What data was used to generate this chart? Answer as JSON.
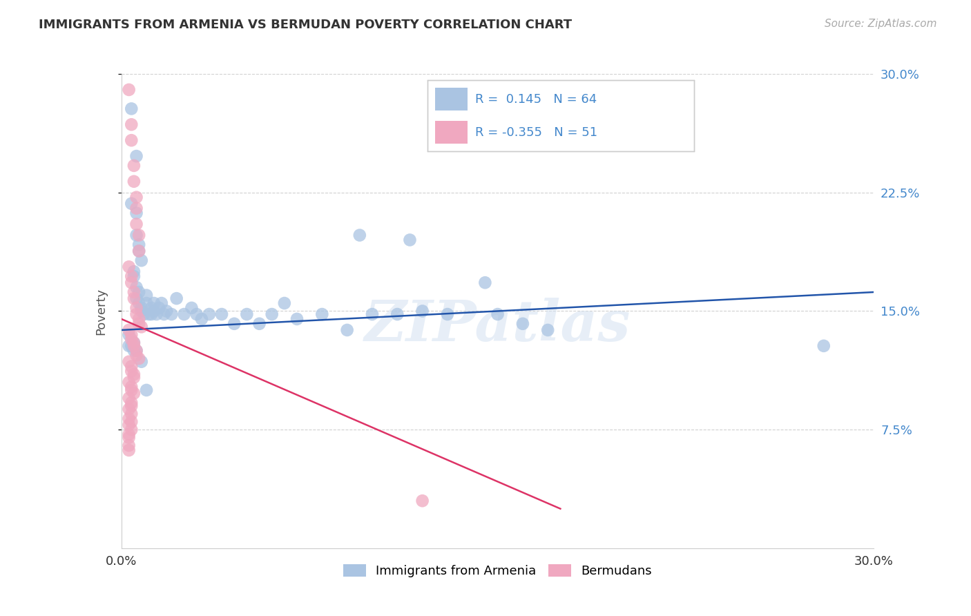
{
  "title": "IMMIGRANTS FROM ARMENIA VS BERMUDAN POVERTY CORRELATION CHART",
  "source": "Source: ZipAtlas.com",
  "ylabel": "Poverty",
  "xlim": [
    0.0,
    0.3
  ],
  "ylim": [
    0.0,
    0.3
  ],
  "xtick_labels": [
    "0.0%",
    "30.0%"
  ],
  "ytick_labels": [
    "7.5%",
    "15.0%",
    "22.5%",
    "30.0%"
  ],
  "ytick_vals": [
    0.075,
    0.15,
    0.225,
    0.3
  ],
  "legend_labels": [
    "Immigrants from Armenia",
    "Bermudans"
  ],
  "blue_R": "0.145",
  "blue_N": "64",
  "pink_R": "-0.355",
  "pink_N": "51",
  "blue_color": "#aac4e2",
  "pink_color": "#f0a8c0",
  "blue_line_color": "#2255aa",
  "pink_line_color": "#dd3366",
  "watermark": "ZIPatlas",
  "blue_scatter_x": [
    0.004,
    0.006,
    0.004,
    0.006,
    0.006,
    0.007,
    0.007,
    0.008,
    0.005,
    0.005,
    0.006,
    0.007,
    0.006,
    0.007,
    0.008,
    0.008,
    0.009,
    0.01,
    0.01,
    0.011,
    0.012,
    0.012,
    0.013,
    0.013,
    0.014,
    0.015,
    0.016,
    0.017,
    0.018,
    0.02,
    0.022,
    0.025,
    0.028,
    0.03,
    0.032,
    0.035,
    0.04,
    0.045,
    0.05,
    0.055,
    0.06,
    0.065,
    0.07,
    0.08,
    0.09,
    0.1,
    0.11,
    0.12,
    0.13,
    0.15,
    0.003,
    0.003,
    0.004,
    0.005,
    0.005,
    0.006,
    0.008,
    0.01,
    0.17,
    0.28,
    0.095,
    0.115,
    0.16,
    0.145
  ],
  "blue_scatter_y": [
    0.278,
    0.248,
    0.218,
    0.212,
    0.198,
    0.192,
    0.188,
    0.182,
    0.175,
    0.172,
    0.165,
    0.162,
    0.158,
    0.155,
    0.152,
    0.15,
    0.148,
    0.155,
    0.16,
    0.148,
    0.148,
    0.152,
    0.15,
    0.155,
    0.148,
    0.152,
    0.155,
    0.148,
    0.15,
    0.148,
    0.158,
    0.148,
    0.152,
    0.148,
    0.145,
    0.148,
    0.148,
    0.142,
    0.148,
    0.142,
    0.148,
    0.155,
    0.145,
    0.148,
    0.138,
    0.148,
    0.148,
    0.15,
    0.148,
    0.148,
    0.135,
    0.128,
    0.128,
    0.13,
    0.125,
    0.125,
    0.118,
    0.1,
    0.138,
    0.128,
    0.198,
    0.195,
    0.142,
    0.168
  ],
  "pink_scatter_x": [
    0.003,
    0.004,
    0.004,
    0.005,
    0.005,
    0.006,
    0.006,
    0.006,
    0.007,
    0.007,
    0.003,
    0.004,
    0.004,
    0.005,
    0.005,
    0.006,
    0.006,
    0.007,
    0.007,
    0.008,
    0.003,
    0.004,
    0.004,
    0.005,
    0.005,
    0.006,
    0.006,
    0.007,
    0.003,
    0.004,
    0.004,
    0.005,
    0.005,
    0.003,
    0.004,
    0.004,
    0.005,
    0.003,
    0.004,
    0.004,
    0.003,
    0.004,
    0.003,
    0.004,
    0.003,
    0.004,
    0.003,
    0.003,
    0.003,
    0.003,
    0.12
  ],
  "pink_scatter_y": [
    0.29,
    0.268,
    0.258,
    0.242,
    0.232,
    0.222,
    0.215,
    0.205,
    0.198,
    0.188,
    0.178,
    0.172,
    0.168,
    0.162,
    0.158,
    0.152,
    0.148,
    0.145,
    0.142,
    0.14,
    0.138,
    0.135,
    0.132,
    0.13,
    0.128,
    0.125,
    0.122,
    0.12,
    0.118,
    0.115,
    0.112,
    0.11,
    0.108,
    0.105,
    0.102,
    0.1,
    0.098,
    0.095,
    0.092,
    0.09,
    0.088,
    0.085,
    0.082,
    0.08,
    0.078,
    0.075,
    0.072,
    0.07,
    0.065,
    0.062,
    0.03
  ],
  "blue_line_x0": 0.0,
  "blue_line_x1": 0.3,
  "blue_line_y0": 0.138,
  "blue_line_y1": 0.162,
  "pink_line_x0": 0.0,
  "pink_line_x1": 0.175,
  "pink_line_y0": 0.145,
  "pink_line_y1": 0.025
}
